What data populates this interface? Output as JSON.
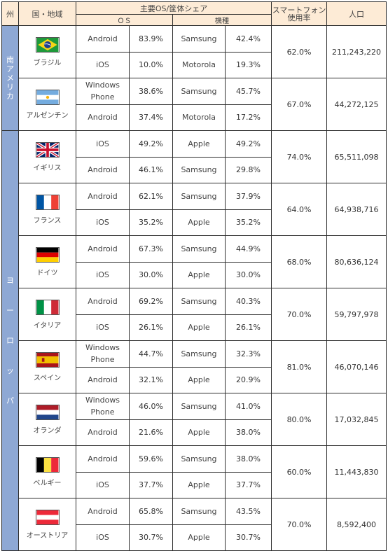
{
  "headers": {
    "region": "州",
    "country": "国・地域",
    "share_group": "主要OS/筐体シェア",
    "os": "ＯＳ",
    "device": "機種",
    "smartphone_line1": "スマートフォン",
    "smartphone_line2": "使用率",
    "population": "人口"
  },
  "regions": [
    {
      "name": "南アメリカ",
      "chars": [
        "南",
        "ア",
        "メ",
        "リ",
        "カ"
      ]
    },
    {
      "name": "ヨーロッパ",
      "chars": [
        "ヨ",
        "ー",
        "ロ",
        "ッ",
        "パ"
      ]
    }
  ],
  "rows": [
    {
      "country": "ブラジル",
      "flag_icon": "brazil-flag-icon",
      "smartphone": "62.0%",
      "population": "211,243,220",
      "entries": [
        {
          "os": "Android",
          "os_share": "83.9%",
          "device": "Samsung",
          "device_share": "42.4%"
        },
        {
          "os": "iOS",
          "os_share": "10.0%",
          "device": "Motorola",
          "device_share": "19.3%"
        }
      ]
    },
    {
      "country": "アルゼンチン",
      "flag_icon": "argentina-flag-icon",
      "smartphone": "67.0%",
      "population": "44,272,125",
      "entries": [
        {
          "os": "Windows Phone",
          "os_share": "38.6%",
          "device": "Samsung",
          "device_share": "45.7%"
        },
        {
          "os": "Android",
          "os_share": "37.4%",
          "device": "Motorola",
          "device_share": "17.2%"
        }
      ]
    },
    {
      "country": "イギリス",
      "flag_icon": "uk-flag-icon",
      "smartphone": "74.0%",
      "population": "65,511,098",
      "entries": [
        {
          "os": "iOS",
          "os_share": "49.2%",
          "device": "Apple",
          "device_share": "49.2%"
        },
        {
          "os": "Android",
          "os_share": "46.1%",
          "device": "Samsung",
          "device_share": "29.8%"
        }
      ]
    },
    {
      "country": "フランス",
      "flag_icon": "france-flag-icon",
      "smartphone": "64.0%",
      "population": "64,938,716",
      "entries": [
        {
          "os": "Android",
          "os_share": "62.1%",
          "device": "Samsung",
          "device_share": "37.9%"
        },
        {
          "os": "iOS",
          "os_share": "35.2%",
          "device": "Apple",
          "device_share": "35.2%"
        }
      ]
    },
    {
      "country": "ドイツ",
      "flag_icon": "germany-flag-icon",
      "smartphone": "68.0%",
      "population": "80,636,124",
      "entries": [
        {
          "os": "Android",
          "os_share": "67.3%",
          "device": "Samsung",
          "device_share": "44.9%"
        },
        {
          "os": "iOS",
          "os_share": "30.0%",
          "device": "Apple",
          "device_share": "30.0%"
        }
      ]
    },
    {
      "country": "イタリア",
      "flag_icon": "italy-flag-icon",
      "smartphone": "70.0%",
      "population": "59,797,978",
      "entries": [
        {
          "os": "Android",
          "os_share": "69.2%",
          "device": "Samsung",
          "device_share": "40.3%"
        },
        {
          "os": "iOS",
          "os_share": "26.1%",
          "device": "Apple",
          "device_share": "26.1%"
        }
      ]
    },
    {
      "country": "スペイン",
      "flag_icon": "spain-flag-icon",
      "smartphone": "81.0%",
      "population": "46,070,146",
      "entries": [
        {
          "os": "Windows Phone",
          "os_share": "44.7%",
          "device": "Samsung",
          "device_share": "32.3%"
        },
        {
          "os": "Android",
          "os_share": "32.1%",
          "device": "Apple",
          "device_share": "20.9%"
        }
      ]
    },
    {
      "country": "オランダ",
      "flag_icon": "netherlands-flag-icon",
      "smartphone": "80.0%",
      "population": "17,032,845",
      "entries": [
        {
          "os": "Windows Phone",
          "os_share": "46.0%",
          "device": "Samsung",
          "device_share": "41.0%"
        },
        {
          "os": "Android",
          "os_share": "21.6%",
          "device": "Apple",
          "device_share": "38.0%"
        }
      ]
    },
    {
      "country": "ベルギー",
      "flag_icon": "belgium-flag-icon",
      "smartphone": "60.0%",
      "population": "11,443,830",
      "entries": [
        {
          "os": "Android",
          "os_share": "59.6%",
          "device": "Samsung",
          "device_share": "38.0%"
        },
        {
          "os": "iOS",
          "os_share": "37.7%",
          "device": "Apple",
          "device_share": "37.7%"
        }
      ]
    },
    {
      "country": "オーストリア",
      "flag_icon": "austria-flag-icon",
      "smartphone": "70.0%",
      "population": "8,592,400",
      "entries": [
        {
          "os": "Android",
          "os_share": "65.8%",
          "device": "Samsung",
          "device_share": "43.5%"
        },
        {
          "os": "iOS",
          "os_share": "30.7%",
          "device": "Apple",
          "device_share": "30.7%"
        }
      ]
    }
  ],
  "colors": {
    "header_bg": "#fdebd6",
    "region_bg": "#8ea8d4",
    "border": "#2e2e2e"
  }
}
